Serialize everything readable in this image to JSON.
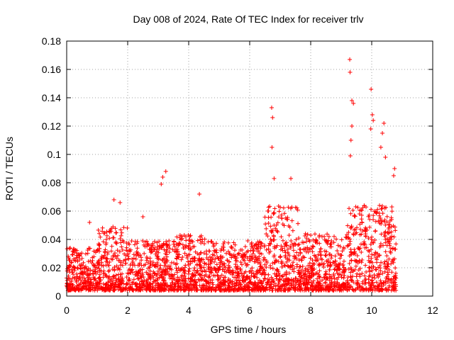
{
  "chart_data": {
    "type": "scatter",
    "title": "Day 008 of 2024, Rate Of TEC Index for receiver trlv",
    "xlabel": "GPS time / hours",
    "ylabel": "ROTI / TECUs",
    "xlim": [
      0,
      12
    ],
    "ylim": [
      0,
      0.18
    ],
    "grid": true,
    "marker": "plus",
    "series_color": "#ff0000",
    "x_tick_labels": [
      "0",
      "2",
      "4",
      "6",
      "8",
      "10",
      "12"
    ],
    "y_tick_labels": [
      "0",
      "0.02",
      "0.04",
      "0.06",
      "0.08",
      "0.1",
      "0.12",
      "0.14",
      "0.16",
      "0.18"
    ],
    "notable_points": [
      {
        "x": 0.05,
        "y": 0.028
      },
      {
        "x": 0.75,
        "y": 0.052
      },
      {
        "x": 1.55,
        "y": 0.068
      },
      {
        "x": 1.75,
        "y": 0.066
      },
      {
        "x": 2.5,
        "y": 0.056
      },
      {
        "x": 3.15,
        "y": 0.084
      },
      {
        "x": 3.25,
        "y": 0.088
      },
      {
        "x": 3.1,
        "y": 0.079
      },
      {
        "x": 4.35,
        "y": 0.072
      },
      {
        "x": 6.72,
        "y": 0.133
      },
      {
        "x": 6.75,
        "y": 0.126
      },
      {
        "x": 6.73,
        "y": 0.105
      },
      {
        "x": 6.8,
        "y": 0.083
      },
      {
        "x": 7.35,
        "y": 0.083
      },
      {
        "x": 9.28,
        "y": 0.167
      },
      {
        "x": 9.29,
        "y": 0.158
      },
      {
        "x": 9.35,
        "y": 0.138
      },
      {
        "x": 9.4,
        "y": 0.136
      },
      {
        "x": 9.35,
        "y": 0.12
      },
      {
        "x": 9.32,
        "y": 0.11
      },
      {
        "x": 9.3,
        "y": 0.099
      },
      {
        "x": 9.98,
        "y": 0.146
      },
      {
        "x": 10.02,
        "y": 0.128
      },
      {
        "x": 10.05,
        "y": 0.124
      },
      {
        "x": 9.97,
        "y": 0.118
      },
      {
        "x": 10.4,
        "y": 0.122
      },
      {
        "x": 10.35,
        "y": 0.115
      },
      {
        "x": 10.3,
        "y": 0.105
      },
      {
        "x": 10.45,
        "y": 0.098
      },
      {
        "x": 10.75,
        "y": 0.09
      },
      {
        "x": 10.72,
        "y": 0.085
      },
      {
        "x": 9.6,
        "y": 0.058
      },
      {
        "x": 8.6,
        "y": 0.042
      }
    ],
    "density_profile": {
      "description_free": true,
      "bands": [
        {
          "x_start": 0.0,
          "x_end": 1.0,
          "base_max": 0.03
        },
        {
          "x_start": 1.0,
          "x_end": 2.0,
          "base_max": 0.045
        },
        {
          "x_start": 2.0,
          "x_end": 3.6,
          "base_max": 0.035
        },
        {
          "x_start": 3.6,
          "x_end": 4.6,
          "base_max": 0.04
        },
        {
          "x_start": 4.6,
          "x_end": 6.5,
          "base_max": 0.035
        },
        {
          "x_start": 6.5,
          "x_end": 7.6,
          "base_max": 0.06
        },
        {
          "x_start": 7.6,
          "x_end": 9.2,
          "base_max": 0.04
        },
        {
          "x_start": 9.2,
          "x_end": 10.8,
          "base_max": 0.06
        }
      ]
    }
  }
}
